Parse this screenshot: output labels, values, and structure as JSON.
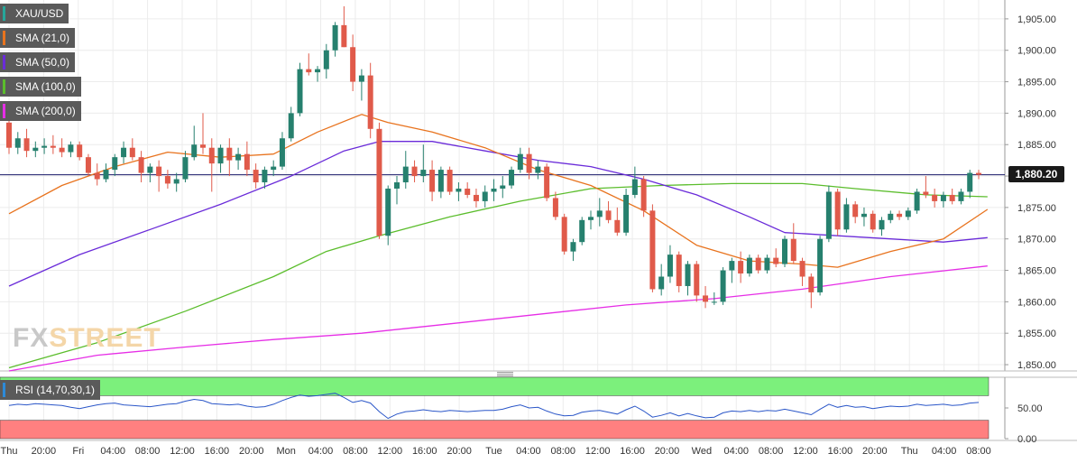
{
  "legend": [
    {
      "label": "XAU/USD",
      "color": "#26a69a"
    },
    {
      "label": "SMA (21,0)",
      "color": "#e8731e"
    },
    {
      "label": "SMA (50,0)",
      "color": "#6a2bd9"
    },
    {
      "label": "SMA (100,0)",
      "color": "#5bbd2c"
    },
    {
      "label": "SMA (200,0)",
      "color": "#e62ee6"
    }
  ],
  "logo": {
    "part1": "FX",
    "part2": "STREET"
  },
  "rsi": {
    "label": "RSI (14,70,30,1)"
  },
  "price_tag": "1,880.20",
  "colors": {
    "up": "#26806e",
    "down": "#e05a4a",
    "sma21": "#e8731e",
    "sma50": "#6a2bd9",
    "sma100": "#5bbd2c",
    "sma200": "#e62ee6",
    "rsi": "#2a56c8",
    "overbought": "#7cf07c",
    "oversold": "#ff8080"
  },
  "chart_data": {
    "type": "candlestick",
    "title": "XAU/USD",
    "y_ticks": [
      "1,905.00",
      "1,900.00",
      "1,895.00",
      "1,890.00",
      "1,885.00",
      "1,880.00",
      "1,875.00",
      "1,870.00",
      "1,865.00",
      "1,860.00",
      "1,855.00",
      "1,850.00"
    ],
    "ylim": [
      1849,
      1908
    ],
    "current_price": 1880.2,
    "x_ticks": [
      "Thu",
      "20:00",
      "Fri",
      "04:00",
      "08:00",
      "12:00",
      "16:00",
      "20:00",
      "Mon",
      "04:00",
      "08:00",
      "12:00",
      "16:00",
      "20:00",
      "Tue",
      "04:00",
      "08:00",
      "12:00",
      "16:00",
      "20:00",
      "Wed",
      "04:00",
      "08:00",
      "12:00",
      "16:00",
      "20:00",
      "Thu",
      "04:00",
      "08:00"
    ],
    "candles": [
      [
        1888.5,
        1889.5,
        1883.5,
        1884.5
      ],
      [
        1884.5,
        1887.0,
        1883.5,
        1886.0
      ],
      [
        1886.0,
        1887.5,
        1883.0,
        1884.0
      ],
      [
        1884.0,
        1885.5,
        1883.0,
        1884.5
      ],
      [
        1884.5,
        1886.0,
        1883.5,
        1884.8
      ],
      [
        1884.8,
        1886.5,
        1883.5,
        1884.5
      ],
      [
        1884.5,
        1886.0,
        1883.0,
        1883.8
      ],
      [
        1883.8,
        1885.5,
        1883.0,
        1885.0
      ],
      [
        1885.0,
        1885.5,
        1882.5,
        1883.0
      ],
      [
        1883.0,
        1883.5,
        1880.0,
        1880.5
      ],
      [
        1880.5,
        1882.0,
        1878.5,
        1879.5
      ],
      [
        1879.5,
        1882.0,
        1879.0,
        1881.0
      ],
      [
        1881.0,
        1883.5,
        1880.0,
        1883.0
      ],
      [
        1883.0,
        1885.5,
        1882.0,
        1884.5
      ],
      [
        1884.5,
        1886.0,
        1882.5,
        1883.0
      ],
      [
        1883.0,
        1884.0,
        1879.0,
        1880.5
      ],
      [
        1880.5,
        1882.0,
        1879.0,
        1881.5
      ],
      [
        1881.5,
        1882.5,
        1877.5,
        1880.0
      ],
      [
        1880.0,
        1881.0,
        1878.0,
        1878.8
      ],
      [
        1878.8,
        1880.5,
        1877.5,
        1879.5
      ],
      [
        1879.5,
        1884.0,
        1879.0,
        1883.0
      ],
      [
        1883.0,
        1888.0,
        1882.5,
        1885.0
      ],
      [
        1885.0,
        1890.0,
        1883.5,
        1884.5
      ],
      [
        1884.5,
        1886.0,
        1877.5,
        1882.0
      ],
      [
        1882.0,
        1885.0,
        1880.5,
        1884.5
      ],
      [
        1884.5,
        1886.0,
        1880.0,
        1882.5
      ],
      [
        1882.5,
        1884.5,
        1881.0,
        1883.5
      ],
      [
        1883.5,
        1885.5,
        1880.0,
        1881.0
      ],
      [
        1881.0,
        1882.0,
        1878.0,
        1879.0
      ],
      [
        1879.0,
        1881.5,
        1878.0,
        1881.0
      ],
      [
        1881.0,
        1882.5,
        1880.0,
        1881.5
      ],
      [
        1881.5,
        1887.0,
        1881.0,
        1886.0
      ],
      [
        1886.0,
        1891.0,
        1885.5,
        1890.0
      ],
      [
        1890.0,
        1898.0,
        1889.5,
        1897.0
      ],
      [
        1897.0,
        1899.5,
        1896.0,
        1896.5
      ],
      [
        1896.5,
        1897.5,
        1895.0,
        1897.0
      ],
      [
        1897.0,
        1901.0,
        1895.5,
        1900.0
      ],
      [
        1900.0,
        1904.5,
        1899.0,
        1904.0
      ],
      [
        1904.0,
        1907.0,
        1900.5,
        1900.5
      ],
      [
        1900.5,
        1902.5,
        1893.5,
        1895.0
      ],
      [
        1895.0,
        1897.0,
        1892.0,
        1896.0
      ],
      [
        1896.0,
        1898.0,
        1886.0,
        1887.5
      ],
      [
        1887.5,
        1888.5,
        1870.0,
        1870.5
      ],
      [
        1870.5,
        1878.5,
        1869.0,
        1878.0
      ],
      [
        1878.0,
        1880.0,
        1875.5,
        1879.0
      ],
      [
        1879.0,
        1884.0,
        1878.0,
        1881.5
      ],
      [
        1881.5,
        1882.5,
        1879.0,
        1880.0
      ],
      [
        1880.0,
        1885.0,
        1879.0,
        1881.0
      ],
      [
        1881.0,
        1882.5,
        1876.0,
        1877.5
      ],
      [
        1877.5,
        1881.5,
        1876.5,
        1881.0
      ],
      [
        1881.0,
        1881.5,
        1877.0,
        1877.5
      ],
      [
        1877.5,
        1879.0,
        1876.0,
        1878.0
      ],
      [
        1878.0,
        1879.0,
        1876.5,
        1877.0
      ],
      [
        1877.0,
        1878.0,
        1875.0,
        1876.0
      ],
      [
        1876.0,
        1878.5,
        1875.0,
        1877.5
      ],
      [
        1877.5,
        1879.5,
        1876.0,
        1878.0
      ],
      [
        1878.0,
        1880.0,
        1876.5,
        1878.5
      ],
      [
        1878.5,
        1881.5,
        1878.0,
        1881.0
      ],
      [
        1881.0,
        1884.5,
        1880.5,
        1883.5
      ],
      [
        1883.5,
        1884.5,
        1879.5,
        1880.5
      ],
      [
        1880.5,
        1882.5,
        1879.5,
        1881.5
      ],
      [
        1881.5,
        1882.0,
        1876.0,
        1876.5
      ],
      [
        1876.5,
        1877.5,
        1873.0,
        1873.5
      ],
      [
        1873.5,
        1874.0,
        1867.5,
        1868.0
      ],
      [
        1868.0,
        1870.0,
        1866.5,
        1869.5
      ],
      [
        1869.5,
        1873.5,
        1869.0,
        1873.0
      ],
      [
        1873.0,
        1874.5,
        1871.5,
        1873.5
      ],
      [
        1873.5,
        1876.5,
        1872.0,
        1874.5
      ],
      [
        1874.5,
        1876.0,
        1872.5,
        1873.0
      ],
      [
        1873.0,
        1875.0,
        1870.5,
        1871.0
      ],
      [
        1871.0,
        1878.0,
        1870.5,
        1877.0
      ],
      [
        1877.0,
        1881.5,
        1876.5,
        1879.5
      ],
      [
        1879.5,
        1880.0,
        1873.5,
        1874.5
      ],
      [
        1874.5,
        1875.5,
        1861.5,
        1862.0
      ],
      [
        1862.0,
        1866.0,
        1861.0,
        1864.0
      ],
      [
        1864.0,
        1869.0,
        1863.0,
        1867.5
      ],
      [
        1867.5,
        1868.0,
        1861.5,
        1862.5
      ],
      [
        1862.5,
        1866.5,
        1861.0,
        1866.0
      ],
      [
        1866.0,
        1866.5,
        1860.0,
        1861.0
      ],
      [
        1861.0,
        1862.5,
        1859.0,
        1860.0
      ],
      [
        1860.0,
        1861.5,
        1859.5,
        1860.0
      ],
      [
        1860.0,
        1865.5,
        1859.5,
        1865.0
      ],
      [
        1865.0,
        1867.0,
        1863.0,
        1866.5
      ],
      [
        1866.5,
        1868.0,
        1863.0,
        1864.5
      ],
      [
        1864.5,
        1867.5,
        1864.0,
        1867.0
      ],
      [
        1867.0,
        1867.5,
        1864.5,
        1865.0
      ],
      [
        1865.0,
        1867.5,
        1864.5,
        1867.0
      ],
      [
        1867.0,
        1868.5,
        1865.5,
        1866.0
      ],
      [
        1866.0,
        1870.5,
        1865.5,
        1870.0
      ],
      [
        1870.0,
        1872.5,
        1866.0,
        1866.5
      ],
      [
        1866.5,
        1867.0,
        1862.5,
        1864.0
      ],
      [
        1864.0,
        1864.5,
        1859.0,
        1861.5
      ],
      [
        1861.5,
        1870.5,
        1861.0,
        1870.0
      ],
      [
        1870.0,
        1878.5,
        1869.5,
        1877.5
      ],
      [
        1877.5,
        1878.0,
        1870.5,
        1871.5
      ],
      [
        1871.5,
        1876.5,
        1871.0,
        1875.5
      ],
      [
        1875.5,
        1876.0,
        1872.5,
        1873.5
      ],
      [
        1873.5,
        1875.0,
        1872.0,
        1874.0
      ],
      [
        1874.0,
        1874.5,
        1871.0,
        1871.5
      ],
      [
        1871.5,
        1873.5,
        1870.5,
        1873.0
      ],
      [
        1873.0,
        1874.5,
        1872.5,
        1874.0
      ],
      [
        1874.0,
        1874.5,
        1873.0,
        1873.5
      ],
      [
        1873.5,
        1875.0,
        1873.0,
        1874.5
      ],
      [
        1874.5,
        1878.0,
        1874.0,
        1877.5
      ],
      [
        1877.5,
        1880.0,
        1876.5,
        1877.0
      ],
      [
        1877.0,
        1878.0,
        1875.0,
        1876.0
      ],
      [
        1876.0,
        1877.5,
        1875.0,
        1877.0
      ],
      [
        1877.0,
        1878.0,
        1875.5,
        1876.0
      ],
      [
        1876.0,
        1878.0,
        1875.5,
        1877.5
      ],
      [
        1877.5,
        1881.0,
        1876.5,
        1880.5
      ],
      [
        1880.5,
        1881.0,
        1879.5,
        1880.2
      ]
    ],
    "sma21": [
      [
        0,
        1874
      ],
      [
        6,
        1878.5
      ],
      [
        12,
        1881.5
      ],
      [
        18,
        1883.8
      ],
      [
        24,
        1883.0
      ],
      [
        30,
        1883.5
      ],
      [
        35,
        1887.0
      ],
      [
        40,
        1889.8
      ],
      [
        43,
        1888.5
      ],
      [
        48,
        1887.0
      ],
      [
        54,
        1884.5
      ],
      [
        60,
        1881.0
      ],
      [
        66,
        1878.5
      ],
      [
        72,
        1874.5
      ],
      [
        78,
        1869.0
      ],
      [
        84,
        1866.5
      ],
      [
        90,
        1866.0
      ],
      [
        94,
        1865.5
      ],
      [
        100,
        1868.0
      ],
      [
        106,
        1870.0
      ],
      [
        111,
        1874.7
      ]
    ],
    "sma50": [
      [
        0,
        1862.5
      ],
      [
        8,
        1867.5
      ],
      [
        16,
        1871.5
      ],
      [
        24,
        1875.5
      ],
      [
        32,
        1880.0
      ],
      [
        38,
        1884.0
      ],
      [
        42,
        1885.5
      ],
      [
        48,
        1885.5
      ],
      [
        54,
        1884.0
      ],
      [
        60,
        1882.5
      ],
      [
        66,
        1881.5
      ],
      [
        72,
        1879.5
      ],
      [
        78,
        1877.0
      ],
      [
        84,
        1873.5
      ],
      [
        88,
        1871.0
      ],
      [
        94,
        1870.5
      ],
      [
        100,
        1870.0
      ],
      [
        106,
        1869.5
      ],
      [
        111,
        1870.2
      ]
    ],
    "sma100": [
      [
        0,
        1849.5
      ],
      [
        10,
        1853.5
      ],
      [
        20,
        1858.5
      ],
      [
        30,
        1864.0
      ],
      [
        36,
        1868.0
      ],
      [
        42,
        1870.5
      ],
      [
        50,
        1873.5
      ],
      [
        58,
        1876.0
      ],
      [
        66,
        1878.0
      ],
      [
        74,
        1878.5
      ],
      [
        82,
        1878.8
      ],
      [
        90,
        1878.8
      ],
      [
        96,
        1878.0
      ],
      [
        104,
        1877.0
      ],
      [
        111,
        1876.7
      ]
    ],
    "sma200": [
      [
        0,
        1849.0
      ],
      [
        10,
        1851.5
      ],
      [
        20,
        1852.8
      ],
      [
        30,
        1854.0
      ],
      [
        40,
        1855.0
      ],
      [
        50,
        1856.5
      ],
      [
        60,
        1858.0
      ],
      [
        70,
        1859.5
      ],
      [
        80,
        1860.5
      ],
      [
        90,
        1862.0
      ],
      [
        100,
        1864.0
      ],
      [
        111,
        1865.7
      ]
    ],
    "rsi_ticks": [
      "50.00",
      "0.00"
    ],
    "rsi_overbought": 70,
    "rsi_oversold": 30,
    "rsi": [
      54,
      56,
      55,
      57,
      56,
      55,
      54,
      51,
      49,
      52,
      55,
      57,
      58,
      55,
      54,
      53,
      52,
      54,
      56,
      57,
      61,
      64,
      62,
      57,
      56,
      55,
      56,
      53,
      51,
      52,
      56,
      62,
      67,
      71,
      69,
      70,
      72,
      74,
      67,
      59,
      62,
      58,
      44,
      33,
      40,
      44,
      45,
      47,
      45,
      44,
      46,
      45,
      44,
      45,
      46,
      46,
      48,
      52,
      55,
      50,
      51,
      45,
      40,
      37,
      38,
      43,
      45,
      46,
      43,
      40,
      47,
      53,
      45,
      35,
      38,
      42,
      37,
      41,
      37,
      34,
      35,
      42,
      45,
      44,
      46,
      44,
      46,
      45,
      48,
      45,
      42,
      39,
      48,
      56,
      51,
      54,
      51,
      52,
      49,
      51,
      53,
      52,
      53,
      56,
      54,
      55,
      56,
      54,
      55,
      58,
      59
    ]
  }
}
